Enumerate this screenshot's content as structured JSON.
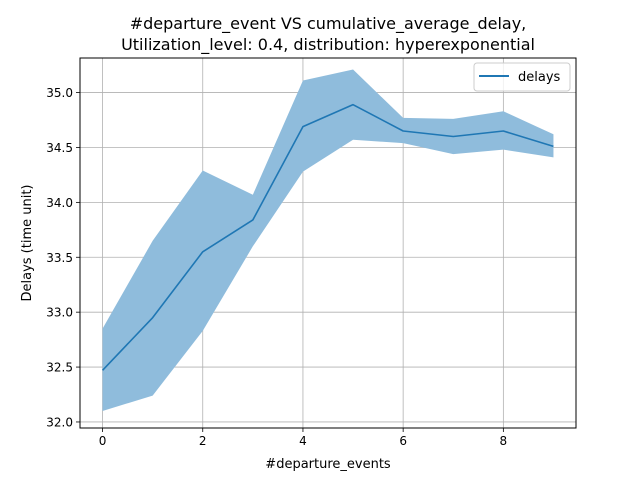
{
  "chart_data": {
    "type": "line",
    "title_line1": "#departure_event VS cumulative_average_delay,",
    "title_line2": "Utilization_level: 0.4, distribution: hyperexponential",
    "xlabel": "#departure_events",
    "ylabel": "Delays (time unit)",
    "xlim": [
      -0.45,
      9.45
    ],
    "ylim": [
      31.945,
      35.315
    ],
    "x_ticks": [
      0,
      2,
      4,
      6,
      8
    ],
    "y_ticks": [
      32.0,
      32.5,
      33.0,
      33.5,
      34.0,
      34.5,
      35.0
    ],
    "grid": true,
    "legend_position": "upper right",
    "series": [
      {
        "name": "delays",
        "color": "#1f77b4",
        "x": [
          0,
          1,
          2,
          3,
          4,
          5,
          6,
          7,
          8,
          9
        ],
        "y": [
          32.47,
          32.95,
          33.55,
          33.84,
          34.69,
          34.89,
          34.65,
          34.6,
          34.65,
          34.51
        ],
        "band_lower": [
          32.1,
          32.24,
          32.83,
          33.6,
          34.28,
          34.57,
          34.54,
          34.44,
          34.48,
          34.41
        ],
        "band_upper": [
          32.85,
          33.65,
          34.29,
          34.07,
          35.11,
          35.21,
          34.77,
          34.76,
          34.83,
          34.62
        ],
        "band_color": "#8fbcdc"
      }
    ]
  }
}
